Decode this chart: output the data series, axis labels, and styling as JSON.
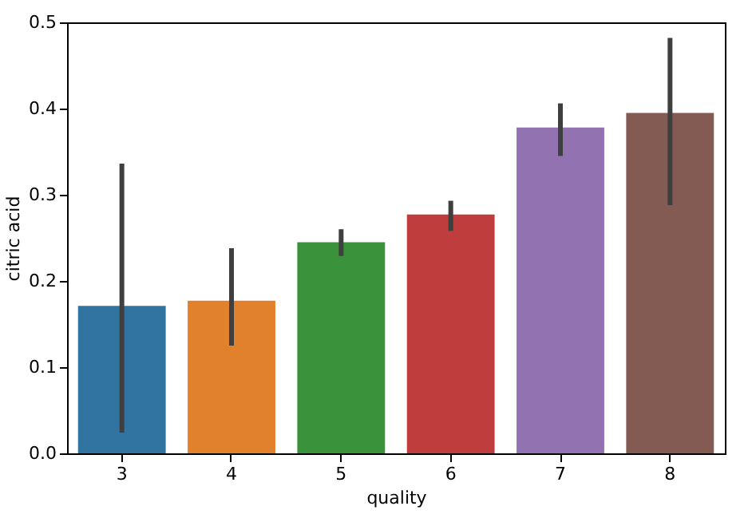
{
  "chart_data": {
    "type": "bar",
    "xlabel": "quality",
    "ylabel": "citric acid",
    "categories": [
      "3",
      "4",
      "5",
      "6",
      "7",
      "8"
    ],
    "values": [
      0.171,
      0.177,
      0.245,
      0.277,
      0.378,
      0.395
    ],
    "colors": [
      "#3274a1",
      "#e1812c",
      "#3a923a",
      "#c03d3e",
      "#9372b2",
      "#845b53"
    ],
    "errors": [
      [
        0.024,
        0.336
      ],
      [
        0.125,
        0.238
      ],
      [
        0.229,
        0.26
      ],
      [
        0.258,
        0.293
      ],
      [
        0.345,
        0.406
      ],
      [
        0.288,
        0.482
      ]
    ],
    "ylim": [
      0,
      0.5
    ],
    "yticks": [
      {
        "value": 0,
        "label": "0.0"
      },
      0.1,
      0.2,
      0.3,
      0.4,
      0.5
    ],
    "grid": false
  }
}
